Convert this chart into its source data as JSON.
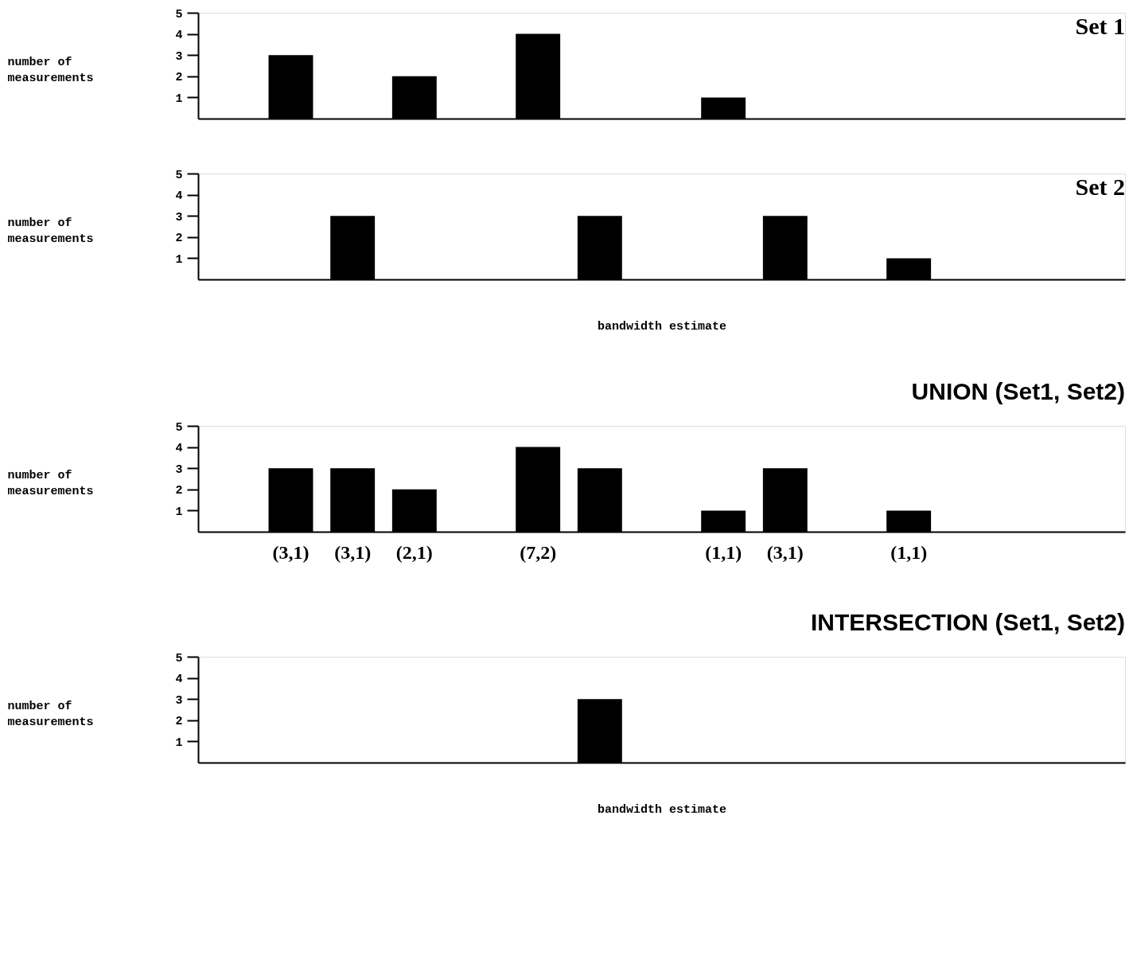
{
  "chart_data": [
    {
      "type": "bar",
      "title": "Set 1",
      "ylabel": "number of\nmeasurements",
      "tick_labels": "y",
      "categories": [
        null,
        null,
        null,
        null,
        null,
        null,
        null,
        null,
        null,
        null,
        null,
        null,
        null,
        null,
        null
      ],
      "values": [
        null,
        3,
        null,
        2,
        null,
        4,
        null,
        null,
        1,
        null,
        null,
        null,
        null,
        null,
        null
      ],
      "color": "#000000",
      "ylim": [
        0,
        5
      ],
      "yticks": [
        1,
        2,
        3,
        4,
        5
      ],
      "grid": false
    },
    {
      "type": "bar",
      "title": "Set 2",
      "ylabel": "number of\nmeasurements",
      "xlabel": "bandwidth estimate",
      "tick_labels": "y",
      "categories": [
        null,
        null,
        null,
        null,
        null,
        null,
        null,
        null,
        null,
        null,
        null,
        null,
        null,
        null,
        null
      ],
      "values": [
        null,
        null,
        3,
        null,
        null,
        null,
        3,
        null,
        null,
        3,
        null,
        1,
        null,
        null,
        null
      ],
      "color": "#000000",
      "ylim": [
        0,
        5
      ],
      "yticks": [
        1,
        2,
        3,
        4,
        5
      ],
      "grid": false
    },
    {
      "type": "bar",
      "title": "UNION (Set1, Set2)",
      "ylabel": "number of\nmeasurements",
      "categories": [
        null,
        "(3,1)",
        "(3,1)",
        "(2,1)",
        null,
        "(7,2)",
        null,
        null,
        "(1,1)",
        "(3,1)",
        null,
        "(1,1)",
        null,
        null,
        null
      ],
      "values": [
        null,
        3,
        3,
        2,
        null,
        4,
        3,
        null,
        1,
        3,
        null,
        1,
        null,
        null,
        null
      ],
      "color": "#000000",
      "ylim": [
        0,
        5
      ],
      "yticks": [
        1,
        2,
        3,
        4,
        5
      ],
      "grid": false
    },
    {
      "type": "bar",
      "title": "INTERSECTION (Set1, Set2)",
      "ylabel": "number of\nmeasurements",
      "xlabel": "bandwidth estimate",
      "tick_labels": "y",
      "categories": [
        null,
        null,
        null,
        null,
        null,
        null,
        null,
        null,
        null,
        null,
        null,
        null,
        null,
        null,
        null
      ],
      "values": [
        null,
        null,
        null,
        null,
        null,
        null,
        3,
        null,
        null,
        null,
        null,
        null,
        null,
        null,
        null
      ],
      "color": "#000000",
      "ylim": [
        0,
        5
      ],
      "yticks": [
        1,
        2,
        3,
        4,
        5
      ],
      "grid": false
    }
  ]
}
